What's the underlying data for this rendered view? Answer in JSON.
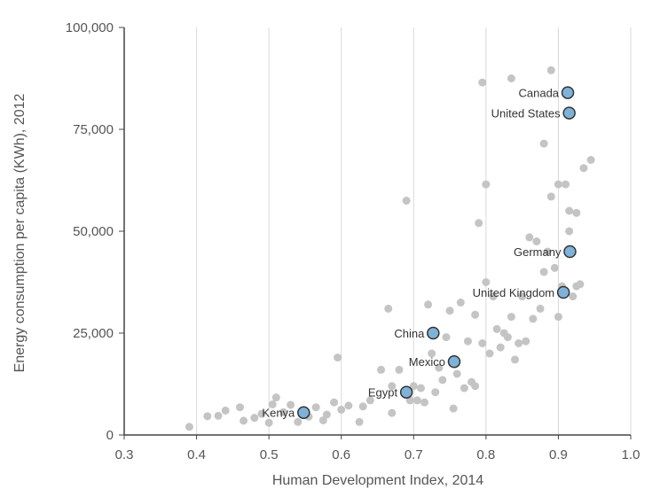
{
  "chart_data": {
    "type": "scatter",
    "xlabel": "Human Development Index, 2014",
    "ylabel": "Energy consumption per capita (KWh), 2012",
    "xlim": [
      0.3,
      1.0
    ],
    "ylim": [
      0,
      100000
    ],
    "x_ticks": [
      "0.3",
      "0.4",
      "0.5",
      "0.6",
      "0.7",
      "0.8",
      "0.9",
      "1.0"
    ],
    "y_ticks": [
      "0",
      "25,000",
      "50,000",
      "75,000",
      "100,000"
    ],
    "grid": "vertical",
    "colors": {
      "background_points": "#c4c4c4",
      "highlight_fill": "#7fb2d9",
      "highlight_stroke": "#333333",
      "grid": "#d9d9d9",
      "axis": "#444444"
    },
    "highlighted": [
      {
        "label": "Canada",
        "x": 0.913,
        "y": 84000
      },
      {
        "label": "United States",
        "x": 0.915,
        "y": 79000
      },
      {
        "label": "Germany",
        "x": 0.916,
        "y": 45000
      },
      {
        "label": "United Kingdom",
        "x": 0.907,
        "y": 35000
      },
      {
        "label": "China",
        "x": 0.727,
        "y": 25000
      },
      {
        "label": "Mexico",
        "x": 0.756,
        "y": 18000
      },
      {
        "label": "Egypt",
        "x": 0.69,
        "y": 10500
      },
      {
        "label": "Kenya",
        "x": 0.548,
        "y": 5500
      }
    ],
    "points": [
      [
        0.39,
        2000
      ],
      [
        0.415,
        4600
      ],
      [
        0.43,
        4700
      ],
      [
        0.44,
        6000
      ],
      [
        0.46,
        6800
      ],
      [
        0.465,
        3500
      ],
      [
        0.48,
        4200
      ],
      [
        0.49,
        5200
      ],
      [
        0.5,
        3000
      ],
      [
        0.505,
        7500
      ],
      [
        0.51,
        9200
      ],
      [
        0.52,
        5600
      ],
      [
        0.53,
        7400
      ],
      [
        0.54,
        3200
      ],
      [
        0.555,
        4500
      ],
      [
        0.565,
        6800
      ],
      [
        0.575,
        3600
      ],
      [
        0.58,
        5000
      ],
      [
        0.59,
        8000
      ],
      [
        0.595,
        19000
      ],
      [
        0.6,
        6200
      ],
      [
        0.61,
        7200
      ],
      [
        0.625,
        3200
      ],
      [
        0.63,
        7000
      ],
      [
        0.64,
        8500
      ],
      [
        0.655,
        16000
      ],
      [
        0.665,
        31000
      ],
      [
        0.67,
        5400
      ],
      [
        0.67,
        12000
      ],
      [
        0.68,
        16000
      ],
      [
        0.69,
        57500
      ],
      [
        0.695,
        8500
      ],
      [
        0.7,
        12000
      ],
      [
        0.705,
        8500
      ],
      [
        0.71,
        11500
      ],
      [
        0.715,
        8000
      ],
      [
        0.72,
        32000
      ],
      [
        0.725,
        20000
      ],
      [
        0.73,
        10500
      ],
      [
        0.735,
        16500
      ],
      [
        0.74,
        13500
      ],
      [
        0.745,
        24000
      ],
      [
        0.75,
        30500
      ],
      [
        0.755,
        6500
      ],
      [
        0.76,
        15000
      ],
      [
        0.765,
        32500
      ],
      [
        0.77,
        11500
      ],
      [
        0.775,
        23000
      ],
      [
        0.78,
        13000
      ],
      [
        0.785,
        29500
      ],
      [
        0.785,
        12000
      ],
      [
        0.79,
        52000
      ],
      [
        0.795,
        86500
      ],
      [
        0.795,
        22500
      ],
      [
        0.8,
        61500
      ],
      [
        0.8,
        37500
      ],
      [
        0.805,
        20000
      ],
      [
        0.81,
        34000
      ],
      [
        0.815,
        26000
      ],
      [
        0.82,
        21500
      ],
      [
        0.825,
        25000
      ],
      [
        0.83,
        24000
      ],
      [
        0.835,
        87500
      ],
      [
        0.835,
        29000
      ],
      [
        0.84,
        18500
      ],
      [
        0.845,
        22500
      ],
      [
        0.85,
        34000
      ],
      [
        0.855,
        23000
      ],
      [
        0.86,
        48500
      ],
      [
        0.865,
        28500
      ],
      [
        0.87,
        47500
      ],
      [
        0.875,
        31000
      ],
      [
        0.88,
        71500
      ],
      [
        0.88,
        40000
      ],
      [
        0.885,
        45000
      ],
      [
        0.89,
        89500
      ],
      [
        0.89,
        58500
      ],
      [
        0.895,
        41000
      ],
      [
        0.9,
        61500
      ],
      [
        0.905,
        36500
      ],
      [
        0.91,
        61500
      ],
      [
        0.915,
        55000
      ],
      [
        0.915,
        50000
      ],
      [
        0.92,
        34000
      ],
      [
        0.925,
        54500
      ],
      [
        0.925,
        36500
      ],
      [
        0.93,
        37000
      ],
      [
        0.935,
        65500
      ],
      [
        0.945,
        67500
      ],
      [
        0.9,
        29000
      ]
    ]
  }
}
